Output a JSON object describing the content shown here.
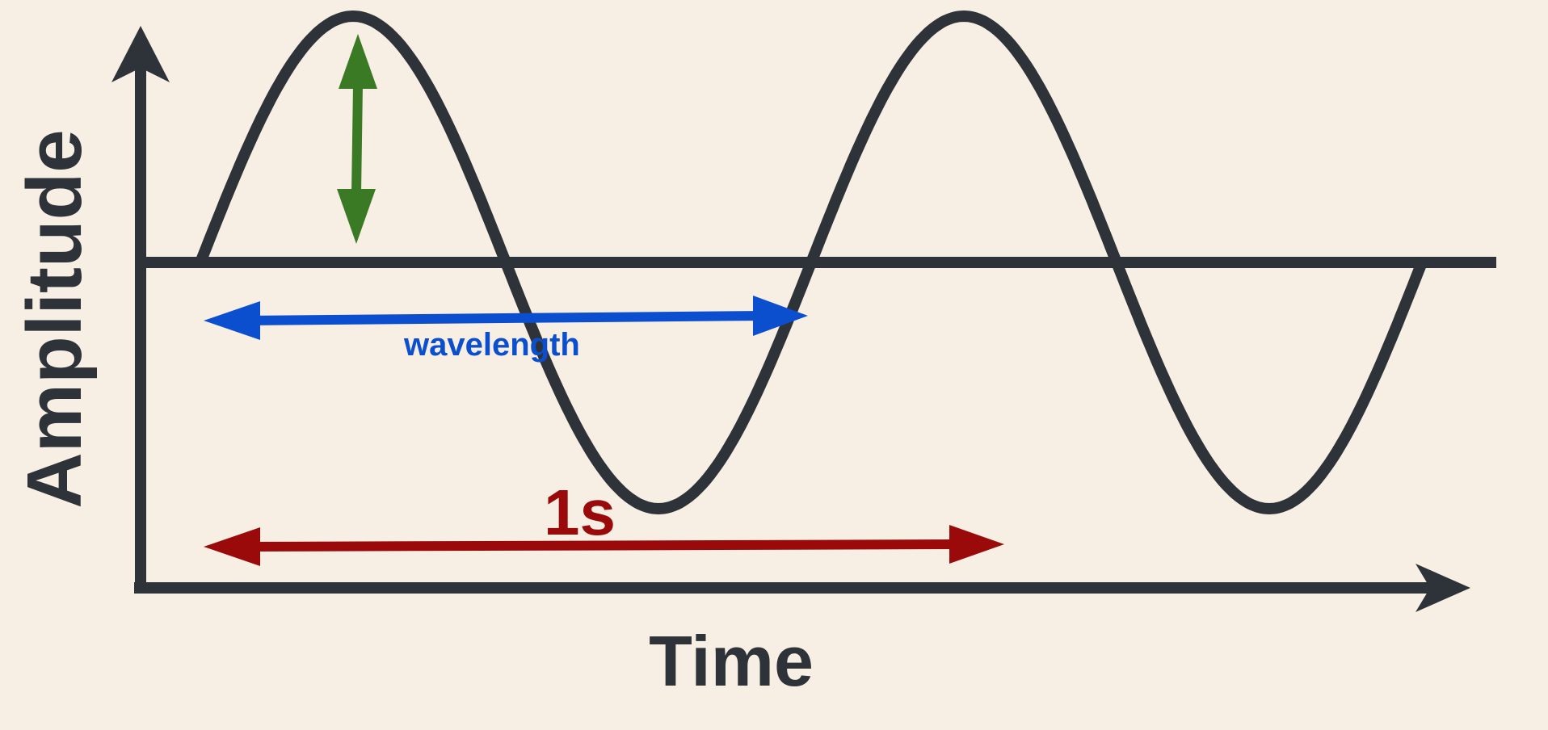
{
  "labels": {
    "y_axis": "Amplitude",
    "x_axis": "Time",
    "wavelength": "wavelength",
    "period": "1s"
  },
  "colors": {
    "background": "#f8efe4",
    "axis": "#2d3338",
    "wave": "#2d3338",
    "amplitude_arrow": "#3a7a25",
    "wavelength_arrow": "#0b4fcf",
    "period_arrow": "#9b0a0a"
  },
  "wave": {
    "cycles_shown": 2,
    "waveform": "sine"
  }
}
